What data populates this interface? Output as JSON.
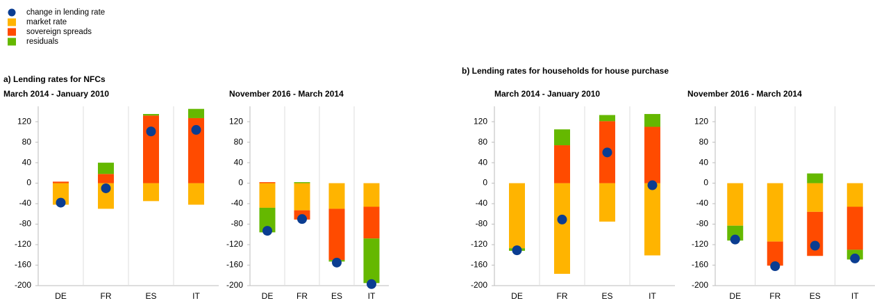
{
  "section_titles": [
    "a) Lending rates for NFCs",
    "b) Lending rates for households for house purchase"
  ],
  "chart_data": [
    {
      "type": "bar",
      "stacked": "diverging",
      "title": "March 2014 - January 2010",
      "categories": [
        "DE",
        "FR",
        "ES",
        "IT"
      ],
      "series": [
        {
          "name": "change in lending rate",
          "kind": "dot",
          "color": "#0b3d91",
          "values": [
            -38,
            -10,
            101,
            104
          ]
        },
        {
          "name": "market rate",
          "kind": "bar",
          "color": "#ffb400",
          "values": [
            -42,
            -50,
            -35,
            -42
          ]
        },
        {
          "name": "sovereign spreads",
          "kind": "bar",
          "color": "#ff4b00",
          "values": [
            3,
            18,
            132,
            127
          ]
        },
        {
          "name": "residuals",
          "kind": "bar",
          "color": "#65b800",
          "values": [
            0,
            22,
            3,
            18
          ]
        }
      ],
      "ylim": [
        -200,
        150
      ],
      "yticks": [
        -200,
        -160,
        -120,
        -80,
        -40,
        0,
        40,
        80,
        120
      ]
    },
    {
      "type": "bar",
      "stacked": "diverging",
      "title": "November 2016 - March 2014",
      "categories": [
        "DE",
        "FR",
        "ES",
        "IT"
      ],
      "series": [
        {
          "kind": "dot",
          "color": "#0b3d91",
          "values": [
            -93,
            -70,
            -155,
            -197
          ]
        },
        {
          "kind": "bar",
          "color": "#ffb400",
          "values": [
            -48,
            -53,
            -50,
            -46
          ]
        },
        {
          "kind": "bar",
          "color": "#ff4b00",
          "values": [
            2,
            -18,
            -100,
            -62
          ]
        },
        {
          "kind": "bar",
          "color": "#65b800",
          "values": [
            -48,
            2,
            -3,
            -87
          ]
        }
      ],
      "ylim": [
        -200,
        150
      ],
      "yticks": [
        -200,
        -160,
        -120,
        -80,
        -40,
        0,
        40,
        80,
        120
      ]
    },
    {
      "type": "bar",
      "stacked": "diverging",
      "title": "March 2014 - January 2010",
      "categories": [
        "DE",
        "FR",
        "ES",
        "IT"
      ],
      "series": [
        {
          "kind": "dot",
          "color": "#0b3d91",
          "values": [
            -131,
            -71,
            60,
            -4
          ]
        },
        {
          "kind": "bar",
          "color": "#ffb400",
          "values": [
            -127,
            -177,
            -75,
            -141
          ]
        },
        {
          "kind": "bar",
          "color": "#ff4b00",
          "values": [
            0,
            74,
            121,
            110
          ]
        },
        {
          "kind": "bar",
          "color": "#65b800",
          "values": [
            -5,
            31,
            12,
            25
          ]
        }
      ],
      "ylim": [
        -200,
        150
      ],
      "yticks": [
        -200,
        -160,
        -120,
        -80,
        -40,
        0,
        40,
        80,
        120
      ]
    },
    {
      "type": "bar",
      "stacked": "diverging",
      "title": "November 2016 - March 2014",
      "categories": [
        "DE",
        "FR",
        "ES",
        "IT"
      ],
      "series": [
        {
          "kind": "dot",
          "color": "#0b3d91",
          "values": [
            -110,
            -162,
            -122,
            -147
          ]
        },
        {
          "kind": "bar",
          "color": "#ffb400",
          "values": [
            -83,
            -114,
            -56,
            -46
          ]
        },
        {
          "kind": "bar",
          "color": "#ff4b00",
          "values": [
            0,
            -47,
            -86,
            -84
          ]
        },
        {
          "kind": "bar",
          "color": "#65b800",
          "values": [
            -29,
            0,
            19,
            -19
          ]
        }
      ],
      "ylim": [
        -200,
        150
      ],
      "yticks": [
        -200,
        -160,
        -120,
        -80,
        -40,
        0,
        40,
        80,
        120
      ]
    }
  ]
}
